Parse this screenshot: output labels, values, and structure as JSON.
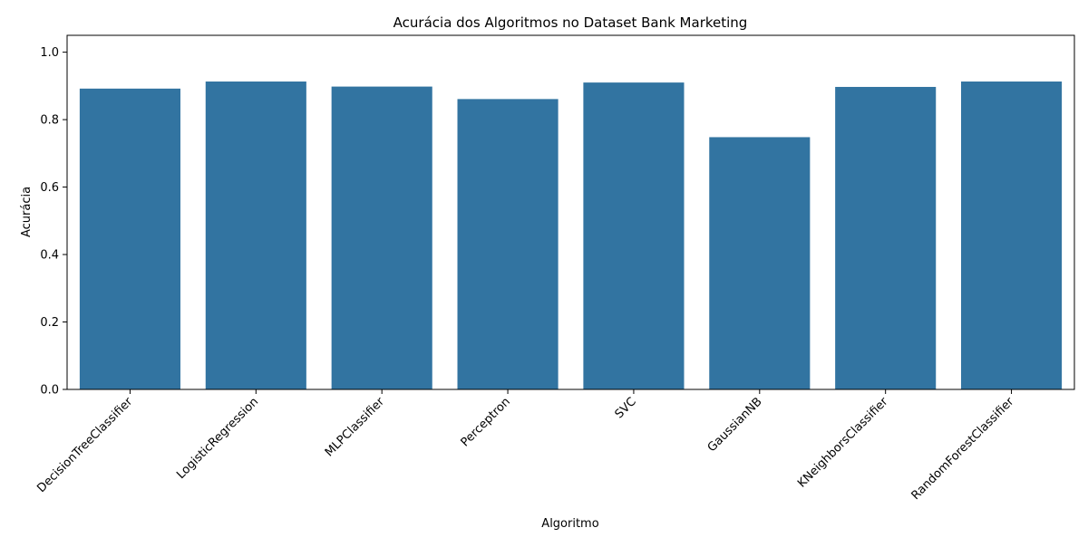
{
  "chart_data": {
    "type": "bar",
    "title": "Acurácia dos Algoritmos no Dataset Bank Marketing",
    "xlabel": "Algoritmo",
    "ylabel": "Acurácia",
    "categories": [
      "DecisionTreeClassifier",
      "LogisticRegression",
      "MLPClassifier",
      "Perceptron",
      "SVC",
      "GaussianNB",
      "KNeighborsClassifier",
      "RandomForestClassifier"
    ],
    "values": [
      0.892,
      0.913,
      0.898,
      0.861,
      0.91,
      0.748,
      0.897,
      0.913
    ],
    "ylim": [
      0,
      1.05
    ],
    "yticks": [
      0.0,
      0.2,
      0.4,
      0.6,
      0.8,
      1.0
    ],
    "ytick_labels": [
      "0.0",
      "0.2",
      "0.4",
      "0.6",
      "0.8",
      "1.0"
    ],
    "grid": false,
    "bar_color": "#3274a1"
  }
}
